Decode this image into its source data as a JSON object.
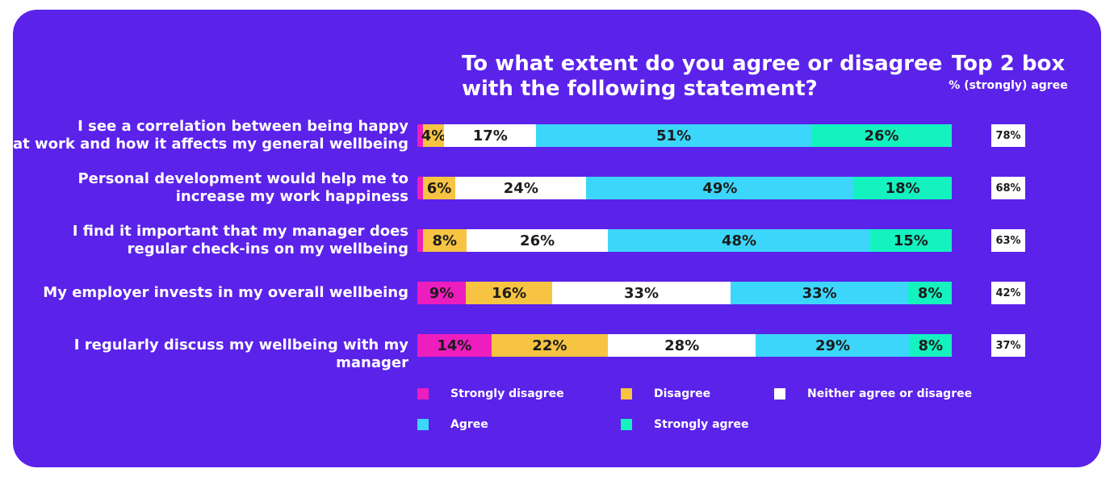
{
  "chart_data": {
    "type": "bar",
    "orientation": "horizontal-stacked",
    "title": "To what extent do you agree or disagree\nwith the following statement?",
    "top2": {
      "title": "Top 2 box",
      "subtitle": "% (strongly) agree"
    },
    "categories": [
      "I see a correlation between being happy\nat work and how it affects my general wellbeing",
      "Personal development would help me to\nincrease my work happiness",
      "I find it important that my manager does\nregular check-ins on my wellbeing",
      "My employer invests in my overall wellbeing",
      "I regularly discuss my wellbeing with my manager"
    ],
    "series": [
      {
        "name": "Strongly disagree",
        "color": "#ee1dbd",
        "values": [
          1,
          1,
          1,
          9,
          14
        ],
        "labels": [
          "",
          "",
          "",
          "9%",
          "14%"
        ]
      },
      {
        "name": "Disagree",
        "color": "#f6c442",
        "values": [
          4,
          6,
          8,
          16,
          22
        ],
        "labels": [
          "4%",
          "6%",
          "8%",
          "16%",
          "22%"
        ]
      },
      {
        "name": "Neither agree or disagree",
        "color": "#ffffff",
        "values": [
          17,
          24,
          26,
          33,
          28
        ],
        "labels": [
          "17%",
          "24%",
          "26%",
          "33%",
          "28%"
        ]
      },
      {
        "name": "Agree",
        "color": "#3dd6fb",
        "values": [
          51,
          49,
          48,
          33,
          29
        ],
        "labels": [
          "51%",
          "49%",
          "48%",
          "33%",
          "29%"
        ]
      },
      {
        "name": "Strongly agree",
        "color": "#14f2c0",
        "values": [
          26,
          18,
          15,
          8,
          8
        ],
        "labels": [
          "26%",
          "18%",
          "15%",
          "8%",
          "8%"
        ]
      }
    ],
    "top2_values": [
      "78%",
      "68%",
      "63%",
      "42%",
      "37%"
    ],
    "legend_position": "bottom",
    "grid": false
  }
}
